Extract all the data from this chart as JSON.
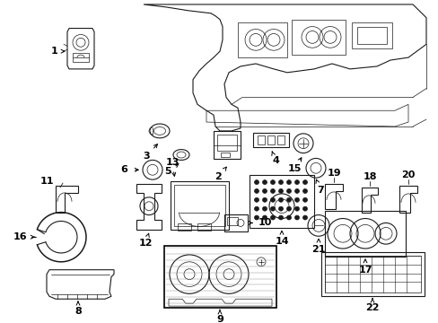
{
  "background_color": "#ffffff",
  "line_color": "#1a1a1a",
  "text_color": "#000000",
  "fig_width": 4.89,
  "fig_height": 3.6,
  "dpi": 100,
  "lw_main": 0.8,
  "lw_thin": 0.5,
  "lw_thick": 1.2,
  "label_fontsize": 8.0
}
